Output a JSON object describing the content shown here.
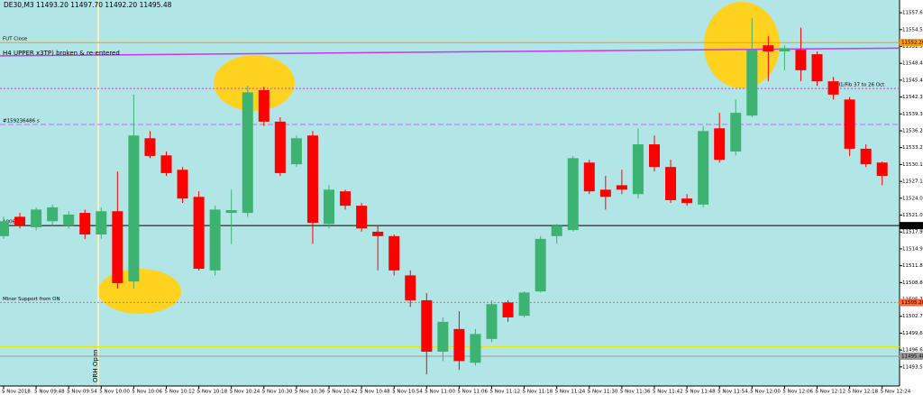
{
  "chart_data": {
    "type": "candlestick",
    "header": "DE30,M3 11493.20 11497.70 11492.20 11495.48",
    "background": "#b2e5e5",
    "up_color": "#3cb371",
    "down_color": "#ff0000",
    "categories": [
      "5 Nov 2018",
      null,
      "5 Nov 09:48",
      null,
      "5 Nov 09:54",
      null,
      "5 Nov 10:00",
      null,
      "5 Nov 10:06",
      null,
      "5 Nov 10:12",
      null,
      "5 Nov 10:18",
      null,
      "5 Nov 10:24",
      null,
      "5 Nov 10:30",
      null,
      "5 Nov 10:36",
      null,
      "5 Nov 10:42",
      null,
      "5 Nov 10:48",
      null,
      "5 Nov 10:54",
      null,
      "5 Nov 11:00",
      null,
      "5 Nov 11:06",
      null,
      "5 Nov 11:12",
      null,
      "5 Nov 11:18",
      null,
      "5 Nov 11:24",
      null,
      "5 Nov 11:30",
      null,
      "5 Nov 11:36",
      null,
      "5 Nov 11:42",
      null,
      "5 Nov 11:48",
      null,
      "5 Nov 11:54",
      null,
      "5 Nov 12:00",
      null,
      "5 Nov 12:06",
      null,
      "5 Nov 12:12",
      null,
      "5 Nov 12:18",
      null,
      "5 Nov 12:24"
    ],
    "open": [
      11517.2,
      11520.7,
      11518.8,
      11519.9,
      11519.1,
      11521.4,
      11517.5,
      11521.7,
      11509.0,
      11534.9,
      11531.8,
      11529.2,
      11524.3,
      11511.0,
      11521.4,
      11521.4,
      11543.6,
      11537.9,
      11530.2,
      11535.4,
      11519.4,
      11525.3,
      11522.7,
      11518.0,
      11517.2,
      11510.1,
      11505.6,
      11496.3,
      11500.4,
      11494.3,
      11498.6,
      11505.2,
      11502.8,
      11507.2,
      11517.2,
      11518.3,
      11530.5,
      11525.6,
      11526.4,
      11524.8,
      11533.8,
      11529.7,
      11524.0,
      11522.9,
      11536.7,
      11532.5,
      11539.0,
      11551.7,
      11550.6,
      11550.9,
      11550.1,
      11545.2,
      11541.9,
      11533.0,
      11530.5
    ],
    "high": [
      11520.7,
      11521.4,
      11522.4,
      11522.9,
      11521.7,
      11522.0,
      11522.4,
      11528.9,
      11542.8,
      11536.2,
      11532.5,
      11529.7,
      11525.3,
      11522.7,
      11525.6,
      11544.4,
      11544.2,
      11538.7,
      11535.4,
      11536.2,
      11526.4,
      11525.6,
      11523.2,
      11519.1,
      11517.5,
      11511.0,
      11506.9,
      11502.5,
      11503.6,
      11500.4,
      11505.6,
      11505.6,
      11507.2,
      11517.2,
      11519.4,
      11531.7,
      11531.0,
      11528.1,
      11529.2,
      11536.7,
      11535.4,
      11531.0,
      11524.8,
      11537.1,
      11539.5,
      11541.9,
      11556.6,
      11553.4,
      11551.7,
      11554.9,
      11550.6,
      11546.0,
      11542.4,
      11533.8,
      11530.7
    ],
    "low": [
      11516.7,
      11518.6,
      11518.3,
      11519.1,
      11518.6,
      11516.7,
      11516.7,
      11507.7,
      11507.7,
      11531.3,
      11528.1,
      11523.2,
      11511.0,
      11510.1,
      11515.8,
      11520.7,
      11537.1,
      11528.1,
      11529.7,
      11515.8,
      11518.6,
      11522.0,
      11518.0,
      11511.0,
      11510.1,
      11504.4,
      11492.2,
      11494.6,
      11493.0,
      11493.8,
      11498.0,
      11501.7,
      11502.5,
      11507.0,
      11515.8,
      11518.0,
      11524.8,
      11522.0,
      11524.8,
      11524.0,
      11528.9,
      11523.2,
      11522.7,
      11522.4,
      11530.5,
      11531.8,
      11538.7,
      11545.2,
      11547.2,
      11545.2,
      11544.4,
      11541.9,
      11531.7,
      11529.7,
      11526.4
    ],
    "close": [
      11519.9,
      11519.1,
      11522.0,
      11522.4,
      11521.1,
      11517.5,
      11521.7,
      11508.7,
      11535.4,
      11531.7,
      11528.6,
      11524.0,
      11511.3,
      11522.0,
      11521.9,
      11543.2,
      11537.9,
      11528.6,
      11534.9,
      11519.6,
      11525.6,
      11522.7,
      11518.6,
      11517.2,
      11511.0,
      11505.6,
      11496.3,
      11501.7,
      11494.6,
      11499.5,
      11504.9,
      11502.5,
      11507.0,
      11516.7,
      11519.1,
      11531.3,
      11525.3,
      11524.3,
      11525.6,
      11533.8,
      11529.7,
      11523.7,
      11523.2,
      11536.2,
      11531.0,
      11539.5,
      11550.9,
      11550.6,
      11551.2,
      11547.2,
      11545.2,
      11542.8,
      11533.0,
      11530.2,
      11528.1
    ],
    "ylim": [
      11490.1,
      11559.9
    ],
    "yticks": [
      {
        "value": 11557.6,
        "label": "11557.60"
      },
      {
        "value": 11554.55,
        "label": "11554.55"
      },
      {
        "value": 11551.5,
        "label": "11551.50"
      },
      {
        "value": 11548.45,
        "label": "11548.45"
      },
      {
        "value": 11545.4,
        "label": "11545.40"
      },
      {
        "value": 11542.35,
        "label": "11542.35"
      },
      {
        "value": 11539.3,
        "label": "11539.30"
      },
      {
        "value": 11536.25,
        "label": "11536.25"
      },
      {
        "value": 11533.2,
        "label": "11533.20"
      },
      {
        "value": 11530.15,
        "label": "11530.15"
      },
      {
        "value": 11527.1,
        "label": "11527.10"
      },
      {
        "value": 11524.05,
        "label": "11524.05"
      },
      {
        "value": 11521,
        "label": "11521.00"
      },
      {
        "value": 11517.95,
        "label": "11517.95"
      },
      {
        "value": 11514.9,
        "label": "11514.90"
      },
      {
        "value": 11511.85,
        "label": "11511.85"
      },
      {
        "value": 11508.8,
        "label": "11508.80"
      },
      {
        "value": 11505.75,
        "label": "11505.75"
      },
      {
        "value": 11502.7,
        "label": "11502.70"
      },
      {
        "value": 11499.65,
        "label": "11499.65"
      },
      {
        "value": 11496.6,
        "label": "11496.60"
      },
      {
        "value": 11493.55,
        "label": "11493.55"
      }
    ],
    "trendline": {
      "label": "H4 UPPER x3TP) broken & re-entered",
      "color": "#cc33ff",
      "values": [
        11549.8,
        11551.2
      ]
    },
    "levels": [
      {
        "label": "FUT Close",
        "value": 11552.2,
        "price_label": "11552.20",
        "color": "#ff9900",
        "style": "solid",
        "label_position": "left"
      },
      {
        "label": "H1/Fib 37 to 26 Oct",
        "value": 11543.9,
        "color": "#cc44cc",
        "style": "dotted",
        "label_position": "right"
      },
      {
        "label": "#159236486 s",
        "value": 11537.4,
        "color": "#cc66ff",
        "style": "dashed",
        "label_position": "left"
      },
      {
        "label": "10065",
        "value": 11519.1,
        "price_label": "11519.10",
        "color": "#000000",
        "style": "solid",
        "label_position": "left"
      },
      {
        "label": "Minor Support from ON",
        "value": 11505.2,
        "price_label": "11505.20",
        "color": "#ff6633",
        "style": "dotted",
        "label_position": "left"
      },
      {
        "value": 11497.2,
        "color": "#e6e600",
        "style": "solid"
      },
      {
        "value": 11495.48,
        "price_label": "11495.48",
        "color": "#999999",
        "style": "solid"
      }
    ],
    "vline_label": "ORH Open"
  }
}
